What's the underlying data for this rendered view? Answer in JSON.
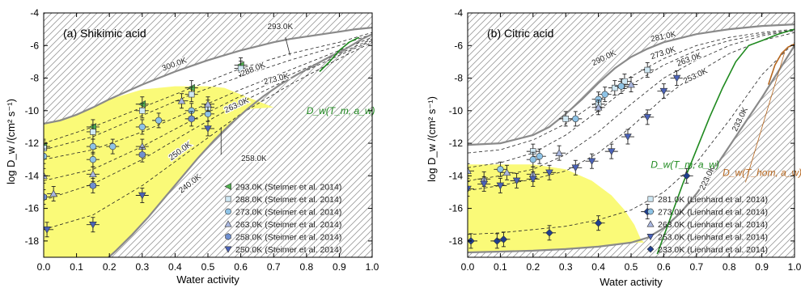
{
  "chart_data": [
    {
      "type": "scatter",
      "panel_label": "(a) Shikimic acid",
      "xlabel": "Water activity",
      "ylabel": "log D_w /(cm² s⁻¹)",
      "xlim": [
        0.0,
        1.0
      ],
      "ylim": [
        -19,
        -4
      ],
      "xticks": [
        "0.0",
        "0.1",
        "0.2",
        "0.3",
        "0.4",
        "0.5",
        "0.6",
        "0.7",
        "0.8",
        "0.9",
        "1.0"
      ],
      "yticks": [
        "-4",
        "-6",
        "-8",
        "-10",
        "-12",
        "-14",
        "-16",
        "-18"
      ],
      "legend_position": "bottom-right",
      "series": [
        {
          "name": "293.0K (Steimer et al. 2014)",
          "marker": "triangle-left",
          "color": "#4fb04f",
          "x": [
            0.0,
            0.15,
            0.3,
            0.45,
            0.6
          ],
          "y": [
            -12.2,
            -11.0,
            -9.6,
            -8.6,
            -7.2
          ]
        },
        {
          "name": "288.0K (Steimer et al. 2014)",
          "marker": "square",
          "color": "#cfe8f4",
          "x": [
            0.0,
            0.15,
            0.3,
            0.45,
            0.5,
            0.6
          ],
          "y": [
            -12.3,
            -11.3,
            -10.0,
            -9.0,
            -9.8,
            -7.4
          ]
        },
        {
          "name": "273.0K (Steimer et al. 2014)",
          "marker": "circle",
          "color": "#8ec3e6",
          "x": [
            0.0,
            0.15,
            0.15,
            0.21,
            0.3,
            0.35,
            0.45,
            0.5
          ],
          "y": [
            -12.8,
            -12.2,
            -13.0,
            -12.2,
            -11.0,
            -10.6,
            -10.0,
            -10.2
          ]
        },
        {
          "name": "263.0K (Steimer et al. 2014)",
          "marker": "triangle-up",
          "color": "#a9b7e0",
          "x": [
            0.0,
            0.03,
            0.15,
            0.3,
            0.42,
            0.5
          ],
          "y": [
            -14.0,
            -15.1,
            -13.9,
            -12.2,
            -9.4,
            -9.6
          ]
        },
        {
          "name": "258.0K (Steimer et al. 2014)",
          "marker": "hexagon",
          "color": "#6f8fd0",
          "x": [
            0.0,
            0.15,
            0.3,
            0.45
          ],
          "y": [
            -15.3,
            -14.6,
            -12.7,
            -10.5
          ]
        },
        {
          "name": "250.0K (Steimer et al. 2014)",
          "marker": "triangle-down",
          "color": "#4a62b8",
          "x": [
            0.01,
            0.15,
            0.3,
            0.5
          ],
          "y": [
            -17.3,
            -17.0,
            -15.2,
            -11.1
          ]
        }
      ],
      "isotherm_labels": [
        "293.0K",
        "300.0K",
        "288.0K",
        "273.0K",
        "263.0K",
        "258.0K",
        "250.0K",
        "240.0K"
      ],
      "annotation": "D_w(T_m, a_w)"
    },
    {
      "type": "scatter",
      "panel_label": "(b) Citric acid",
      "xlabel": "Water activity",
      "ylabel": "log D_w /(cm² s⁻¹)",
      "xlim": [
        0.0,
        1.0
      ],
      "ylim": [
        -19,
        -4
      ],
      "xticks": [
        "0.0",
        "0.1",
        "0.2",
        "0.3",
        "0.4",
        "0.5",
        "0.6",
        "0.7",
        "0.8",
        "0.9",
        "1.0"
      ],
      "yticks": [
        "-4",
        "-6",
        "-8",
        "-10",
        "-12",
        "-14",
        "-16",
        "-18"
      ],
      "legend_position": "bottom-right",
      "series": [
        {
          "name": "281.0K (Lienhard et al. 2014)",
          "marker": "square",
          "color": "#cfe8f4",
          "x": [
            0.2,
            0.3,
            0.4,
            0.45,
            0.48,
            0.55
          ],
          "y": [
            -12.5,
            -10.5,
            -9.6,
            -8.6,
            -8.2,
            -7.5
          ]
        },
        {
          "name": "273.0K (Lienhard et al. 2014)",
          "marker": "circle",
          "color": "#8ec3e6",
          "x": [
            0.1,
            0.2,
            0.22,
            0.33,
            0.4,
            0.42,
            0.47
          ],
          "y": [
            -13.6,
            -13.0,
            -12.8,
            -10.5,
            -9.3,
            -9.0,
            -8.5
          ]
        },
        {
          "name": "263.0K (Lienhard et al. 2014)",
          "marker": "triangle-up",
          "color": "#a9b7e0",
          "x": [
            0.0,
            0.05,
            0.12,
            0.2,
            0.28,
            0.4,
            0.5
          ],
          "y": [
            -13.7,
            -14.2,
            -13.8,
            -13.9,
            -12.6,
            -9.8,
            -8.4
          ]
        },
        {
          "name": "253.0K (Lienhard et al. 2014)",
          "marker": "triangle-down",
          "color": "#4a62b8",
          "x": [
            0.0,
            0.05,
            0.1,
            0.15,
            0.2,
            0.25,
            0.33,
            0.38,
            0.44,
            0.49,
            0.55,
            0.6,
            0.64
          ],
          "y": [
            -14.8,
            -14.5,
            -14.6,
            -14.3,
            -14.2,
            -13.8,
            -13.5,
            -13.1,
            -12.5,
            -11.6,
            -10.4,
            -8.8,
            -8.0
          ]
        },
        {
          "name": "233.0K (Lienhard et al. 2014)",
          "marker": "diamond",
          "color": "#1f3f8f",
          "x": [
            0.01,
            0.09,
            0.11,
            0.25,
            0.4,
            0.55,
            0.67
          ],
          "y": [
            -18.0,
            -18.0,
            -17.9,
            -17.5,
            -16.9,
            -16.2,
            -14.0
          ]
        }
      ],
      "isotherm_labels": [
        "281.0K",
        "290.0K",
        "273.0K",
        "263.0K",
        "253.0K",
        "233.0K",
        "223.0K"
      ],
      "annotation": "D_w(T_m, a_w)",
      "annotation2": "D_w(T_hom, a_w)"
    }
  ]
}
